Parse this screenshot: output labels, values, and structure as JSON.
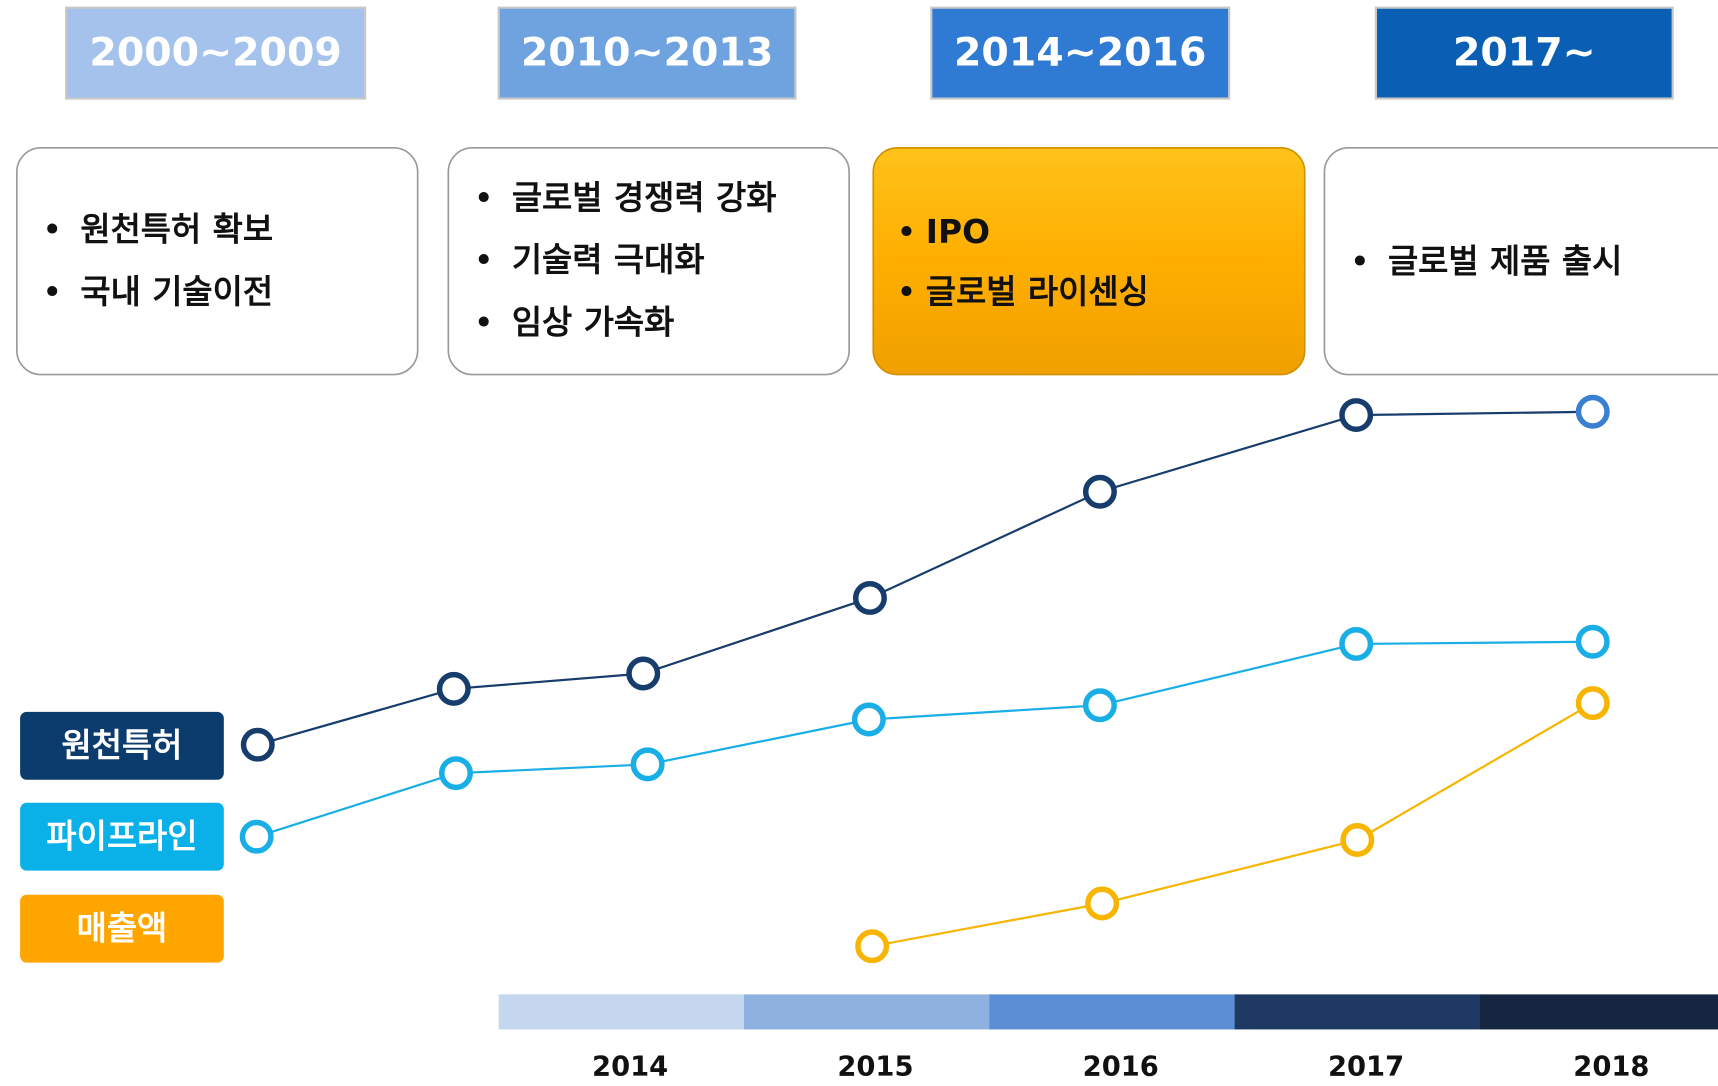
{
  "periods": [
    {
      "label": "2000~2009",
      "items": [
        "원천특허 확보",
        "국내 기술이전"
      ]
    },
    {
      "label": "2010~2013",
      "items": [
        "글로벌 경쟁력 강화",
        "기술력 극대화",
        "임상 가속화"
      ]
    },
    {
      "label": "2014~2016",
      "items": [
        "IPO",
        "글로벌 라이센싱"
      ]
    },
    {
      "label": "2017~",
      "items": [
        "글로벌 제품 출시"
      ]
    }
  ],
  "legend": [
    "원천특허",
    "파이프라인",
    "매출액"
  ],
  "years": [
    "2014",
    "2015",
    "2016",
    "2017",
    "2018"
  ]
}
